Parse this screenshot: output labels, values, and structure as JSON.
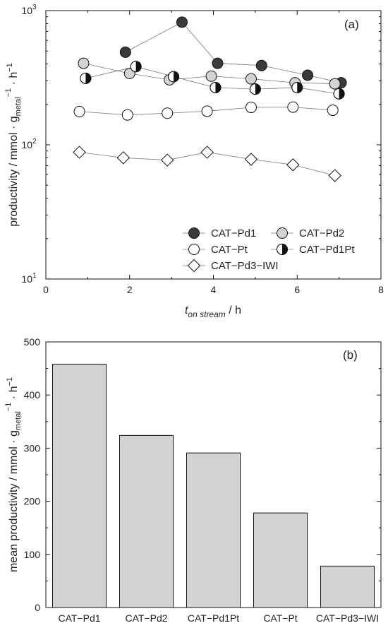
{
  "colors": {
    "pd1_fill": "#3a3a3a",
    "pd2_fill": "#d3d3d3",
    "pt_fill": "#ffffff",
    "iwl_fill": "#ffffff",
    "bar_fill": "#d3d3d3",
    "stroke": "#111111",
    "line": "#777777"
  },
  "chart_data": [
    {
      "type": "scatter",
      "panel_label": "(a)",
      "xlabel_main": "t",
      "xlabel_sub": "on stream",
      "xlabel_unit": " / h",
      "ylabel_main": "productivity / mmol · g",
      "ylabel_sub": "metal",
      "ylabel_sup": "−1",
      "ylabel_tail": " · h",
      "ylabel_tail_sup": "−1",
      "xlim": [
        0,
        8
      ],
      "ylim": [
        10,
        1000
      ],
      "yscale": "log",
      "xticks": [
        "0",
        "2",
        "4",
        "6",
        "8"
      ],
      "yticks": [
        {
          "base": "10",
          "exp": "1",
          "value": 10
        },
        {
          "base": "10",
          "exp": "2",
          "value": 100
        },
        {
          "base": "10",
          "exp": "3",
          "value": 1000
        }
      ],
      "legend_position": "bottom-right",
      "series": [
        {
          "name": "CAT−Pd1",
          "marker": "circle-dark",
          "x": [
            1.9,
            3.25,
            4.1,
            5.15,
            6.25,
            7.05
          ],
          "y": [
            490,
            820,
            405,
            390,
            330,
            290
          ]
        },
        {
          "name": "CAT−Pd2",
          "marker": "circle-gray",
          "x": [
            0.9,
            2.0,
            2.95,
            3.95,
            4.9,
            5.95,
            6.9
          ],
          "y": [
            405,
            340,
            305,
            325,
            310,
            290,
            285
          ]
        },
        {
          "name": "CAT−Pt",
          "marker": "circle-open",
          "x": [
            0.8,
            1.95,
            2.9,
            3.85,
            4.9,
            5.9,
            6.85
          ],
          "y": [
            177,
            167,
            172,
            178,
            190,
            191,
            181
          ]
        },
        {
          "name": "CAT−Pd1Pt",
          "marker": "circle-half",
          "x": [
            0.95,
            2.15,
            3.05,
            4.05,
            5.0,
            6.0,
            7.0
          ],
          "y": [
            313,
            383,
            322,
            267,
            260,
            267,
            240
          ]
        },
        {
          "name": "CAT−Pd3−IWI",
          "marker": "diamond",
          "x": [
            0.8,
            1.85,
            2.9,
            3.85,
            4.9,
            5.9,
            6.9
          ],
          "y": [
            88,
            80,
            77,
            88,
            78,
            71,
            59
          ]
        }
      ]
    },
    {
      "type": "bar",
      "panel_label": "(b)",
      "ylabel_main": "mean productivity / mmol · g",
      "ylabel_sub": "metal",
      "ylabel_sup": "−1",
      "ylabel_tail": " · h",
      "ylabel_tail_sup": "−1",
      "categories": [
        "CAT−Pd1",
        "CAT−Pd2",
        "CAT−Pd1Pt",
        "CAT−Pt",
        "CAT−Pd3−IWI"
      ],
      "values": [
        458,
        324,
        291,
        178,
        78
      ],
      "ylim": [
        0,
        500
      ],
      "yticks": [
        "0",
        "100",
        "200",
        "300",
        "400",
        "500"
      ]
    }
  ]
}
